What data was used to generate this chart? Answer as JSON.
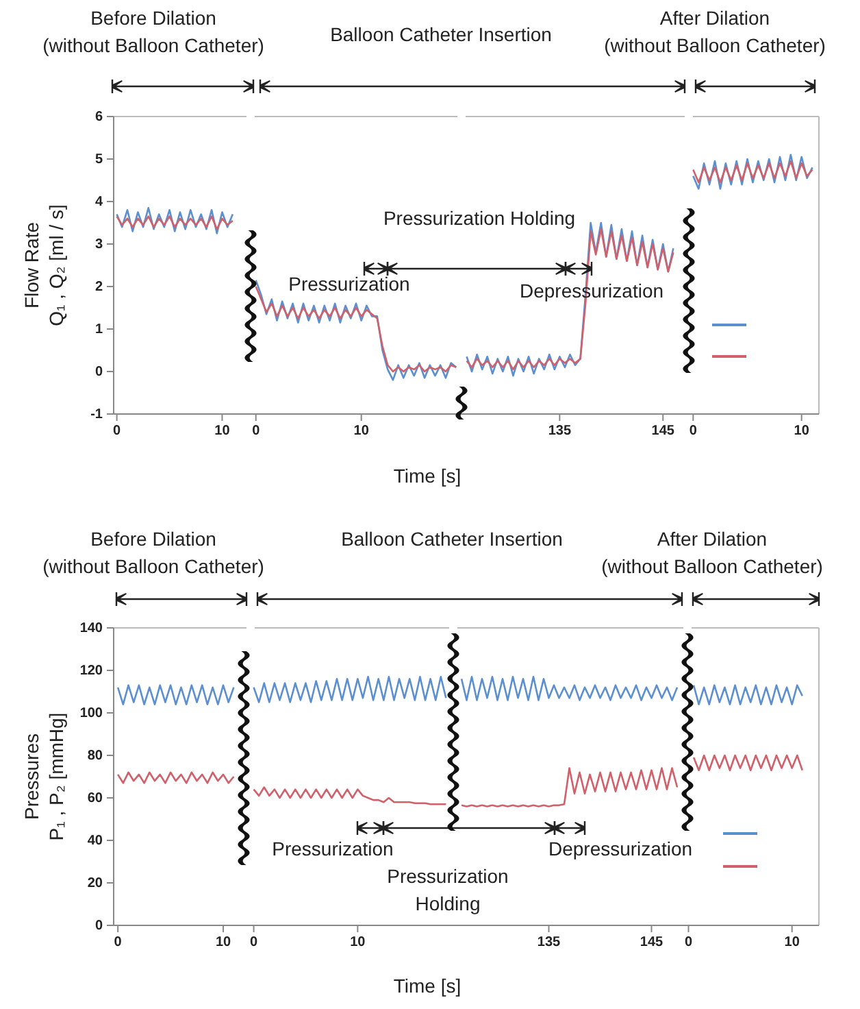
{
  "chart_data": [
    {
      "type": "line",
      "ylabel": "Flow Rate\nQ₁ , Q₂ [ml / s]",
      "marker": "none",
      "line_style": "solid",
      "xlim": [
        -0.3,
        12.7
      ],
      "xticks": [
        0,
        10
      ],
      "ylim": [
        -1,
        6
      ],
      "yticks": [
        -1,
        0,
        1,
        2,
        3,
        4,
        5,
        6
      ],
      "annotations": [
        "Before Dilation\n(without Balloon Catheter)"
      ],
      "x": [
        0,
        0.5,
        1,
        1.5,
        2,
        2.5,
        3,
        3.5,
        4,
        4.5,
        5,
        5.5,
        6,
        6.5,
        7,
        7.5,
        8,
        8.5,
        9,
        9.5,
        10,
        10.5,
        11
      ],
      "series": [
        {
          "color": "#5b8fd0",
          "values": [
            3.7,
            3.4,
            3.8,
            3.3,
            3.75,
            3.4,
            3.85,
            3.35,
            3.7,
            3.4,
            3.8,
            3.3,
            3.75,
            3.35,
            3.8,
            3.4,
            3.7,
            3.35,
            3.8,
            3.25,
            3.75,
            3.4,
            3.7
          ]
        },
        {
          "color": "#d0606a",
          "values": [
            3.65,
            3.45,
            3.6,
            3.4,
            3.6,
            3.45,
            3.65,
            3.4,
            3.6,
            3.45,
            3.65,
            3.4,
            3.6,
            3.45,
            3.6,
            3.45,
            3.6,
            3.4,
            3.65,
            3.35,
            3.6,
            3.45,
            3.55
          ]
        }
      ]
    },
    {
      "type": "line",
      "xlabel": "Time [s]",
      "marker": "none",
      "line_style": "solid",
      "xlim": [
        -0.5,
        19.5
      ],
      "xticks": [
        0,
        10
      ],
      "ylim": [
        -1,
        6
      ],
      "tick_labels": "x",
      "annotations": [
        "Balloon Catheter Insertion",
        "Pressurization",
        "Pressurization Holding"
      ],
      "x": [
        0,
        0.5,
        1,
        1.5,
        2,
        2.5,
        3,
        3.5,
        4,
        4.5,
        5,
        5.5,
        6,
        6.5,
        7,
        7.5,
        8,
        8.5,
        9,
        9.5,
        10,
        10.5,
        11,
        11.5,
        12,
        12.5,
        13,
        13.5,
        14,
        14.5,
        15,
        15.5,
        16,
        16.5,
        17,
        17.5,
        18,
        18.5,
        19
      ],
      "series": [
        {
          "color": "#5b8fd0",
          "values": [
            2.15,
            1.8,
            1.35,
            1.7,
            1.2,
            1.65,
            1.25,
            1.6,
            1.15,
            1.6,
            1.2,
            1.55,
            1.15,
            1.55,
            1.2,
            1.6,
            1.15,
            1.55,
            1.25,
            1.6,
            1.2,
            1.55,
            1.3,
            1.3,
            0.5,
            0.05,
            -0.2,
            0.15,
            -0.15,
            0.15,
            -0.1,
            0.2,
            -0.15,
            0.15,
            -0.1,
            0.15,
            -0.15,
            0.2,
            0.1
          ]
        },
        {
          "color": "#d0606a",
          "values": [
            2.0,
            1.7,
            1.4,
            1.6,
            1.3,
            1.55,
            1.3,
            1.5,
            1.25,
            1.5,
            1.3,
            1.45,
            1.25,
            1.45,
            1.3,
            1.5,
            1.25,
            1.45,
            1.3,
            1.5,
            1.3,
            1.45,
            1.35,
            1.25,
            0.6,
            0.15,
            0.0,
            0.1,
            0.0,
            0.1,
            0.05,
            0.15,
            0.0,
            0.1,
            0.05,
            0.1,
            0.0,
            0.15,
            0.1
          ]
        }
      ]
    },
    {
      "type": "line",
      "marker": "none",
      "line_style": "solid",
      "xlim": [
        125.5,
        147.5
      ],
      "xticks": [
        135,
        145
      ],
      "ylim": [
        -1,
        6
      ],
      "tick_labels": "x",
      "annotations": [
        "Depressurization"
      ],
      "x": [
        126,
        126.5,
        127,
        127.5,
        128,
        128.5,
        129,
        129.5,
        130,
        130.5,
        131,
        131.5,
        132,
        132.5,
        133,
        133.5,
        134,
        134.5,
        135,
        135.5,
        136,
        136.5,
        137,
        137.5,
        138,
        138.5,
        139,
        139.5,
        140,
        140.5,
        141,
        141.5,
        142,
        142.5,
        143,
        143.5,
        144,
        144.5,
        145,
        145.5,
        146
      ],
      "series": [
        {
          "color": "#5b8fd0",
          "values": [
            0.35,
            0.0,
            0.4,
            0.05,
            0.35,
            -0.05,
            0.3,
            0.0,
            0.35,
            -0.1,
            0.3,
            0.0,
            0.35,
            -0.05,
            0.3,
            0.05,
            0.4,
            0.05,
            0.35,
            0.1,
            0.4,
            0.15,
            0.3,
            1.8,
            3.5,
            2.8,
            3.5,
            2.7,
            3.45,
            2.65,
            3.35,
            2.6,
            3.3,
            2.5,
            3.2,
            2.45,
            3.1,
            2.4,
            3.0,
            2.35,
            2.9
          ]
        },
        {
          "color": "#d0606a",
          "values": [
            0.25,
            0.1,
            0.3,
            0.15,
            0.25,
            0.1,
            0.25,
            0.1,
            0.25,
            0.05,
            0.25,
            0.1,
            0.25,
            0.1,
            0.25,
            0.15,
            0.3,
            0.15,
            0.3,
            0.2,
            0.3,
            0.2,
            0.3,
            1.6,
            3.3,
            2.75,
            3.35,
            2.7,
            3.3,
            2.65,
            3.2,
            2.6,
            3.15,
            2.5,
            3.05,
            2.45,
            3.0,
            2.4,
            2.9,
            2.35,
            2.8
          ]
        }
      ]
    },
    {
      "type": "line",
      "marker": "none",
      "line_style": "solid",
      "xlim": [
        -0.4,
        11.6
      ],
      "xticks": [
        0,
        10
      ],
      "ylim": [
        -1,
        6
      ],
      "tick_labels": "x",
      "annotations": [
        "After Dilation\n(without Balloon Catheter)"
      ],
      "x": [
        0,
        0.5,
        1,
        1.5,
        2,
        2.5,
        3,
        3.5,
        4,
        4.5,
        5,
        5.5,
        6,
        6.5,
        7,
        7.5,
        8,
        8.5,
        9,
        9.5,
        10,
        10.5,
        11
      ],
      "series": [
        {
          "color": "#5b8fd0",
          "values": [
            4.6,
            4.3,
            4.9,
            4.4,
            4.95,
            4.3,
            4.9,
            4.4,
            4.95,
            4.4,
            5.0,
            4.45,
            4.95,
            4.5,
            5.0,
            4.45,
            5.05,
            4.5,
            5.1,
            4.5,
            5.05,
            4.55,
            4.8
          ]
        },
        {
          "color": "#d0606a",
          "values": [
            4.75,
            4.45,
            4.8,
            4.5,
            4.8,
            4.45,
            4.8,
            4.5,
            4.85,
            4.5,
            4.9,
            4.55,
            4.85,
            4.55,
            4.9,
            4.55,
            4.9,
            4.6,
            4.95,
            4.55,
            4.9,
            4.6,
            4.75
          ]
        }
      ]
    },
    {
      "type": "line",
      "ylabel": "Pressures\nP₁ , P₂ [mmHg]",
      "marker": "none",
      "line_style": "solid",
      "xlim": [
        -0.4,
        12.6
      ],
      "xticks": [
        0,
        10
      ],
      "ylim": [
        0,
        140
      ],
      "yticks": [
        0,
        20,
        40,
        60,
        80,
        100,
        120,
        140
      ],
      "annotations": [
        "Before Dilation\n(without Balloon Catheter)"
      ],
      "x": [
        0,
        0.5,
        1,
        1.5,
        2,
        2.5,
        3,
        3.5,
        4,
        4.5,
        5,
        5.5,
        6,
        6.5,
        7,
        7.5,
        8,
        8.5,
        9,
        9.5,
        10,
        10.5,
        11
      ],
      "series": [
        {
          "color": "#5b8fd0",
          "values": [
            112,
            104,
            113,
            105,
            113,
            104,
            112,
            104,
            113,
            105,
            113,
            104,
            112,
            104,
            113,
            105,
            113,
            104,
            112,
            104,
            113,
            105,
            112
          ]
        },
        {
          "color": "#d0606a",
          "values": [
            71,
            67,
            72,
            68,
            71,
            67,
            72,
            68,
            71,
            67,
            72,
            68,
            71,
            67,
            72,
            68,
            71,
            67,
            72,
            68,
            71,
            67,
            70
          ]
        }
      ]
    },
    {
      "type": "line",
      "xlabel": "Time [s]",
      "marker": "none",
      "line_style": "solid",
      "xlim": [
        -0.3,
        19.2
      ],
      "xticks": [
        0,
        10
      ],
      "ylim": [
        0,
        140
      ],
      "tick_labels": "x",
      "annotations": [
        "Balloon Catheter Insertion",
        "Pressurization",
        "Pressurization\nHolding"
      ],
      "x": [
        0,
        0.5,
        1,
        1.5,
        2,
        2.5,
        3,
        3.5,
        4,
        4.5,
        5,
        5.5,
        6,
        6.5,
        7,
        7.5,
        8,
        8.5,
        9,
        9.5,
        10,
        10.5,
        11,
        11.5,
        12,
        12.5,
        13,
        13.5,
        14,
        14.5,
        15,
        15.5,
        16,
        16.5,
        17,
        17.5,
        18,
        18.5
      ],
      "series": [
        {
          "color": "#5b8fd0",
          "values": [
            112,
            105,
            114,
            105,
            114,
            106,
            114,
            105,
            114,
            106,
            114,
            105,
            115,
            106,
            115,
            106,
            116,
            106,
            116,
            106,
            116,
            107,
            117,
            106,
            116,
            106,
            117,
            106,
            116,
            107,
            116,
            106,
            117,
            106,
            116,
            106,
            117,
            107
          ]
        },
        {
          "color": "#d0606a",
          "values": [
            64,
            61,
            65,
            61,
            64,
            60,
            64,
            60,
            64,
            60,
            64,
            60,
            64,
            60,
            64,
            60,
            64,
            60,
            64,
            60,
            64,
            61,
            60,
            59,
            59,
            58,
            60,
            58,
            58,
            58,
            58,
            57.5,
            57.5,
            57.5,
            57,
            57,
            57,
            57
          ]
        }
      ]
    },
    {
      "type": "line",
      "marker": "none",
      "line_style": "solid",
      "xlim": [
        125.7,
        148.5
      ],
      "xticks": [
        135,
        145
      ],
      "ylim": [
        0,
        140
      ],
      "tick_labels": "x",
      "annotations": [
        "Depressurization"
      ],
      "x": [
        126.5,
        127,
        127.5,
        128,
        128.5,
        129,
        129.5,
        130,
        130.5,
        131,
        131.5,
        132,
        132.5,
        133,
        133.5,
        134,
        134.5,
        135,
        135.5,
        136,
        136.5,
        137,
        137.5,
        138,
        138.5,
        139,
        139.5,
        140,
        140.5,
        141,
        141.5,
        142,
        142.5,
        143,
        143.5,
        144,
        144.5,
        145,
        145.5,
        146,
        146.5,
        147,
        147.5
      ],
      "series": [
        {
          "color": "#5b8fd0",
          "values": [
            116,
            106,
            117,
            106,
            116,
            107,
            117,
            106,
            116,
            106,
            117,
            107,
            116,
            106,
            117,
            106,
            116,
            107,
            113,
            107,
            112,
            107,
            113,
            106,
            112,
            107,
            113,
            107,
            112,
            106,
            113,
            107,
            112,
            107,
            113,
            106,
            112,
            107,
            113,
            107,
            112,
            106,
            112
          ]
        },
        {
          "color": "#d0606a",
          "values": [
            56.5,
            56,
            56.5,
            56,
            56.5,
            56,
            56.5,
            56,
            56.5,
            56,
            56.5,
            56,
            56.5,
            56,
            56.5,
            56,
            56.5,
            56,
            56.5,
            56.5,
            57,
            74,
            62,
            72,
            62,
            71,
            63,
            72,
            63,
            72,
            63,
            72,
            64,
            72,
            64,
            73,
            64,
            73,
            64,
            74,
            64,
            74,
            65
          ]
        }
      ]
    },
    {
      "type": "line",
      "marker": "none",
      "line_style": "solid",
      "xlim": [
        -0.1,
        12.6
      ],
      "xticks": [
        0,
        10
      ],
      "ylim": [
        0,
        140
      ],
      "tick_labels": "x",
      "annotations": [
        "After Dilation\n(without Balloon Catheter)"
      ],
      "x": [
        0.5,
        1,
        1.5,
        2,
        2.5,
        3,
        3.5,
        4,
        4.5,
        5,
        5.5,
        6,
        6.5,
        7,
        7.5,
        8,
        8.5,
        9,
        9.5,
        10,
        10.5,
        11
      ],
      "series": [
        {
          "color": "#5b8fd0",
          "values": [
            113,
            104,
            112,
            104,
            113,
            105,
            112,
            104,
            113,
            104,
            112,
            105,
            113,
            104,
            112,
            104,
            113,
            105,
            112,
            104,
            113,
            108
          ]
        },
        {
          "color": "#d0606a",
          "values": [
            79,
            73,
            80,
            73,
            80,
            74,
            80,
            73,
            80,
            74,
            80,
            73,
            80,
            74,
            80,
            73,
            80,
            74,
            80,
            74,
            80,
            73
          ]
        }
      ]
    }
  ]
}
